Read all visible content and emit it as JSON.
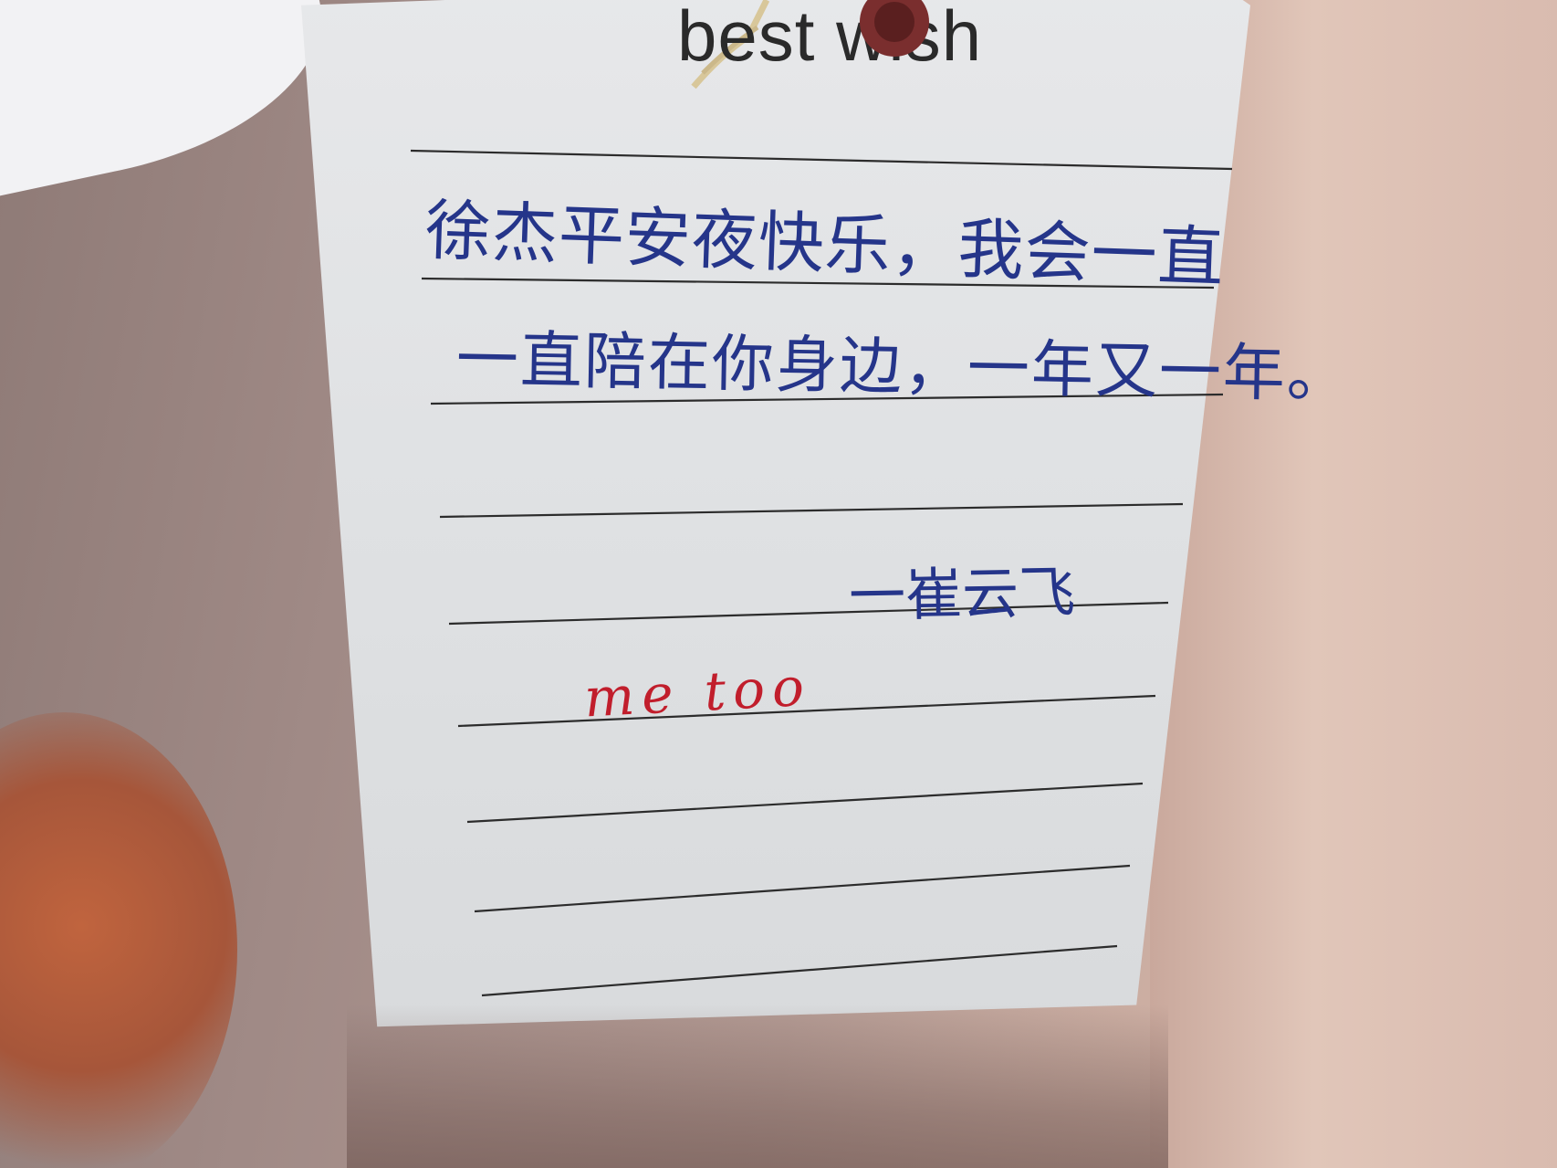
{
  "tag": {
    "brand_text": "best wish",
    "message_line_1": "徐杰平安夜快乐，我会一直",
    "message_line_2": "一直陪在你身边，一年又一年。",
    "signature": "一崔云飞",
    "reply": "me too"
  },
  "colors": {
    "ink_blue": "#25358a",
    "ink_red": "#c11e2c",
    "paper": "#e3e4e6"
  }
}
